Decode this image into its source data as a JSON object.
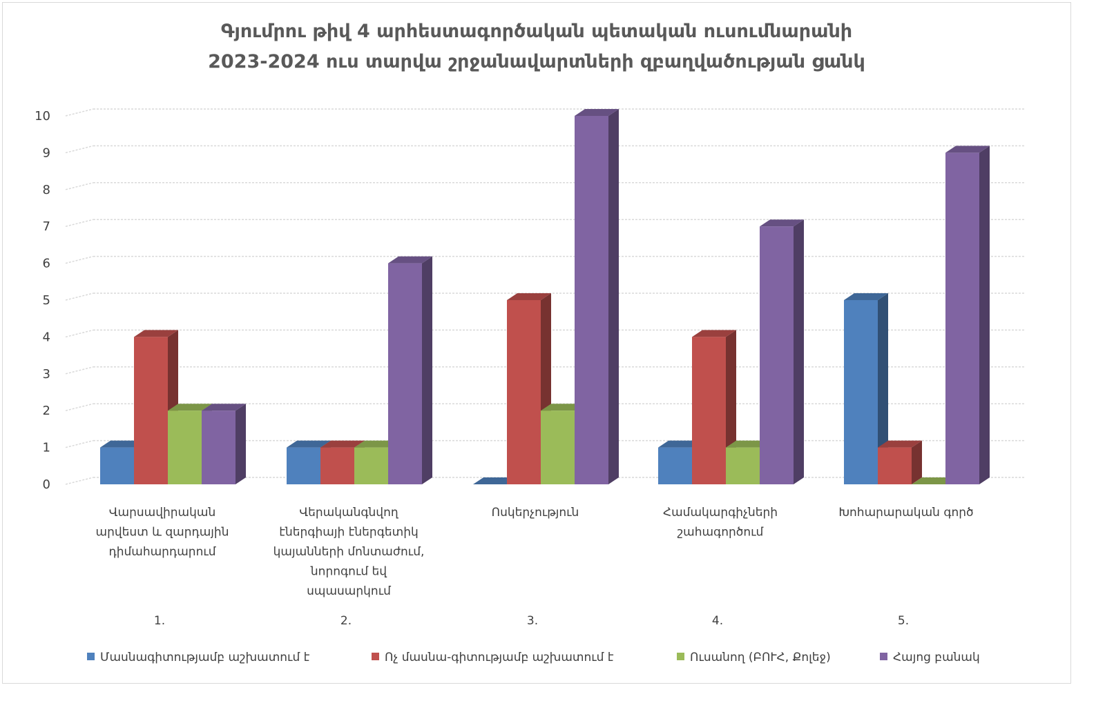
{
  "chart_data": {
    "type": "bar",
    "title_lines": [
      "Գյումրու թիվ 4 արհեստագործական պետական ուսումնարանի",
      "2023-2024 ուս տարվա շրջանավարտների զբաղվածության ցանկ"
    ],
    "categories": [
      [
        "Վարսավիրական",
        "արվեստ և զարդային",
        "դիմահարդարում"
      ],
      [
        "Վերականգնվող",
        "էներգիայի էներգետիկ",
        "կայանների մոնտաժում,",
        "նորոգում եվ",
        "սպասարկում"
      ],
      [
        "Ոսկերչություն"
      ],
      [
        "Համակարգիչների",
        "շահագործում"
      ],
      [
        "Խոհարարական գործ"
      ]
    ],
    "category_numbers": [
      "1.",
      "2.",
      "3.",
      "4.",
      "5."
    ],
    "series": [
      {
        "name": "Մասնագիտությամբ աշխատում է",
        "color": "#4f81bd",
        "values": [
          1,
          1,
          0,
          1,
          5
        ]
      },
      {
        "name": "Ոչ մասնա-գիտությամբ աշխատում է",
        "color": "#c0504d",
        "values": [
          4,
          1,
          5,
          4,
          1
        ]
      },
      {
        "name": "Ուսանող (ԲՈՒՀ, Քոլեջ)",
        "color": "#9bbb59",
        "values": [
          2,
          1,
          2,
          1,
          0
        ]
      },
      {
        "name": "Հայոց բանակ",
        "color": "#8064a2",
        "values": [
          2,
          6,
          10,
          7,
          9
        ]
      }
    ],
    "y_ticks": [
      "0",
      "1",
      "2",
      "3",
      "4",
      "5",
      "6",
      "7",
      "8",
      "9",
      "10"
    ],
    "ylim": [
      0,
      10
    ],
    "grid": true,
    "legend_position": "bottom",
    "style": "3d-column"
  }
}
